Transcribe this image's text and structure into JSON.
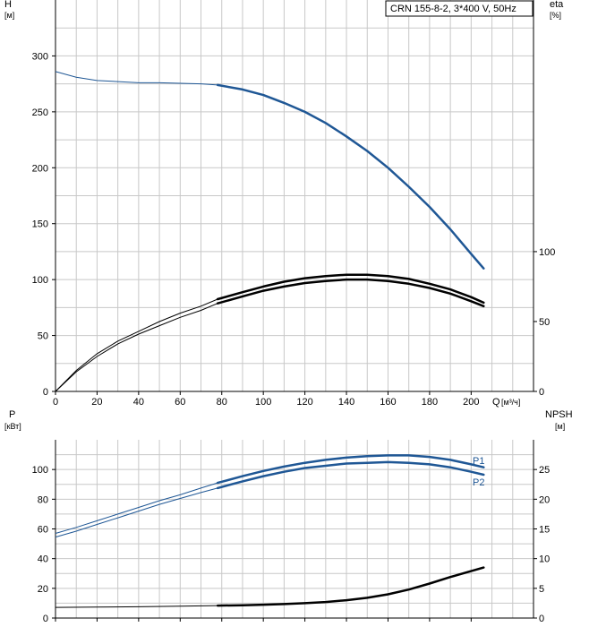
{
  "chart_data": [
    {
      "type": "line",
      "title": "CRN 155-8-2, 3*400 V, 50Hz",
      "xlabel": "Q",
      "xunit": "[м³/ч]",
      "ylabel_left": "H",
      "yunit_left": "[м]",
      "ylabel_right": "eta",
      "yunit_right": "[%]",
      "xlim": [
        0,
        230
      ],
      "ylim_left": [
        0,
        350
      ],
      "ylim_right": [
        0,
        280
      ],
      "x_ticks": [
        "0",
        "20",
        "40",
        "60",
        "80",
        "100",
        "120",
        "140",
        "160",
        "180",
        "200"
      ],
      "y_ticks_left": [
        "0",
        "50",
        "100",
        "150",
        "200",
        "250",
        "300"
      ],
      "y_ticks_right": [
        "0",
        "50",
        "100"
      ],
      "grid": true,
      "series": [
        {
          "name": "H",
          "axis": "left",
          "color": "#1f5795",
          "x": [
            0,
            10,
            20,
            30,
            40,
            50,
            60,
            70,
            78,
            90,
            100,
            110,
            120,
            130,
            140,
            150,
            160,
            170,
            180,
            190,
            200,
            206
          ],
          "y": [
            286,
            281,
            278,
            277,
            276,
            276,
            275.5,
            275,
            274,
            270,
            265,
            258,
            250,
            240,
            228,
            215,
            200,
            183,
            165,
            145,
            123,
            110
          ]
        },
        {
          "name": "eta",
          "axis": "right",
          "color": "#000000",
          "x": [
            0,
            10,
            20,
            30,
            40,
            50,
            60,
            70,
            78,
            90,
            100,
            110,
            120,
            130,
            140,
            150,
            160,
            170,
            180,
            190,
            200,
            206
          ],
          "y": [
            0,
            14,
            25,
            34,
            41,
            47,
            53,
            58,
            63,
            68,
            72,
            75,
            77.5,
            79,
            80,
            80,
            79,
            77,
            74,
            70,
            64.5,
            61
          ]
        },
        {
          "name": "eta-upper",
          "axis": "right",
          "color": "#000000",
          "x": [
            0,
            10,
            20,
            30,
            40,
            50,
            60,
            70,
            78,
            90,
            100,
            110,
            120,
            130,
            140,
            150,
            160,
            170,
            180,
            190,
            200,
            206
          ],
          "y": [
            0,
            15,
            27,
            36,
            43,
            50,
            56,
            61,
            66,
            71,
            75,
            78.5,
            81,
            82.5,
            83.5,
            83.5,
            82.5,
            80.5,
            77,
            73,
            67.5,
            63.5
          ]
        }
      ]
    },
    {
      "type": "line",
      "xlabel": "",
      "ylabel_left": "P",
      "yunit_left": "[кВт]",
      "ylabel_right": "NPSH",
      "yunit_right": "[м]",
      "xlim": [
        0,
        230
      ],
      "ylim_left": [
        0,
        120
      ],
      "ylim_right": [
        0,
        30
      ],
      "y_ticks_left": [
        "0",
        "20",
        "40",
        "60",
        "80",
        "100"
      ],
      "y_ticks_right": [
        "0",
        "5",
        "10",
        "15",
        "20",
        "25"
      ],
      "grid": true,
      "series": [
        {
          "name": "P1",
          "axis": "left",
          "color": "#1f5795",
          "x": [
            0,
            10,
            20,
            30,
            40,
            50,
            60,
            70,
            78,
            90,
            100,
            110,
            120,
            130,
            140,
            150,
            160,
            170,
            180,
            190,
            200,
            206
          ],
          "y": [
            57,
            61,
            65.5,
            70,
            74.5,
            79,
            83,
            87.5,
            91,
            95.5,
            99,
            102,
            104.5,
            106.5,
            108,
            109,
            109.5,
            109.5,
            108.5,
            106.5,
            103.5,
            101.5
          ]
        },
        {
          "name": "P2",
          "axis": "left",
          "color": "#1f5795",
          "x": [
            0,
            10,
            20,
            30,
            40,
            50,
            60,
            70,
            78,
            90,
            100,
            110,
            120,
            130,
            140,
            150,
            160,
            170,
            180,
            190,
            200,
            206
          ],
          "y": [
            54.5,
            58.5,
            63,
            67.5,
            72,
            76.5,
            80.5,
            84.5,
            87.5,
            92,
            95.5,
            98.5,
            101,
            102.5,
            104,
            104.5,
            105,
            104.5,
            103.5,
            101.5,
            98.5,
            96.5
          ]
        },
        {
          "name": "NPSH",
          "axis": "right",
          "color": "#000000",
          "x": [
            0,
            20,
            40,
            60,
            78,
            90,
            100,
            110,
            120,
            130,
            140,
            150,
            160,
            170,
            180,
            190,
            200,
            206
          ],
          "y": [
            1.8,
            1.85,
            1.9,
            2.0,
            2.1,
            2.15,
            2.25,
            2.35,
            2.5,
            2.7,
            3.0,
            3.4,
            4.0,
            4.8,
            5.8,
            6.9,
            7.9,
            8.5
          ]
        }
      ],
      "series_labels": [
        "P1",
        "P2"
      ]
    }
  ]
}
